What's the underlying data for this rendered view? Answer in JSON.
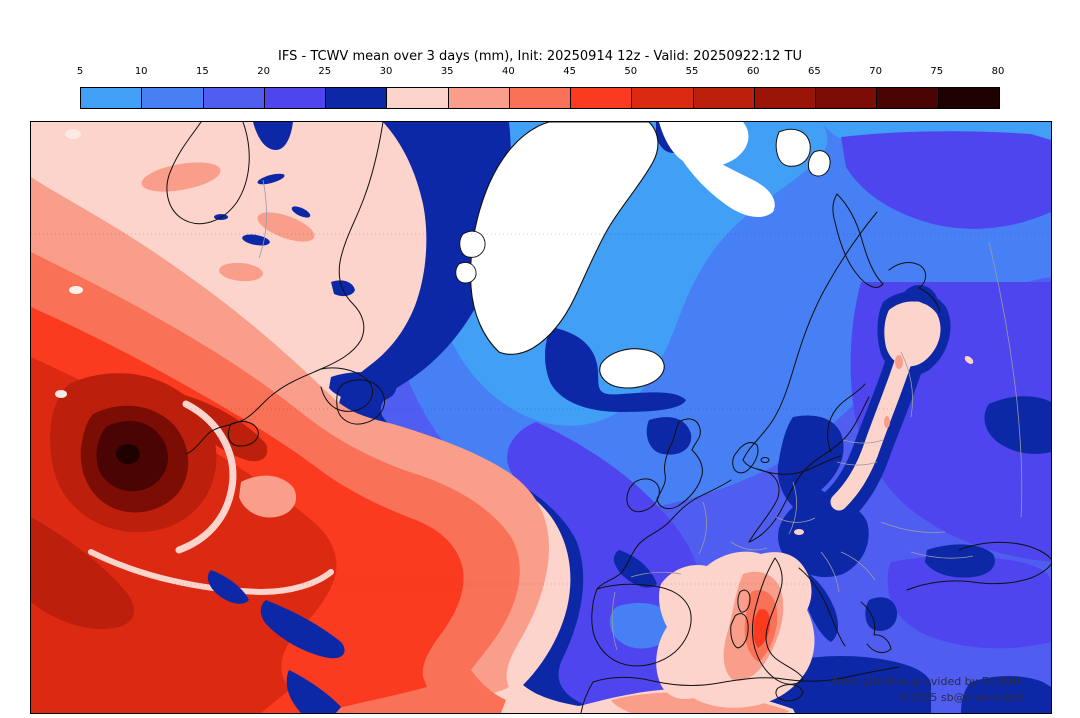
{
  "title": "IFS - TCWV mean over 3 days (mm), Init: 20250914 12z - Valid: 20250922:12 TU",
  "colorbar": {
    "unit": "mm",
    "tick_labels": [
      "5",
      "10",
      "15",
      "20",
      "25",
      "30",
      "35",
      "40",
      "45",
      "50",
      "55",
      "60",
      "65",
      "70",
      "75",
      "80"
    ],
    "segment_colors": [
      "#41a0f6",
      "#4680f4",
      "#4f5ef0",
      "#4e45ef",
      "#0d28a6",
      "#fcd4cc",
      "#f99e8b",
      "#f97157",
      "#fa3b20",
      "#dc2912",
      "#bc1f0b",
      "#9a1507",
      "#7c0d05",
      "#4a0403",
      "#1e0100"
    ]
  },
  "map": {
    "attribution_line1": "from grib files provided by ECMWF",
    "attribution_line2": "©2025 sb@irizone.net"
  }
}
